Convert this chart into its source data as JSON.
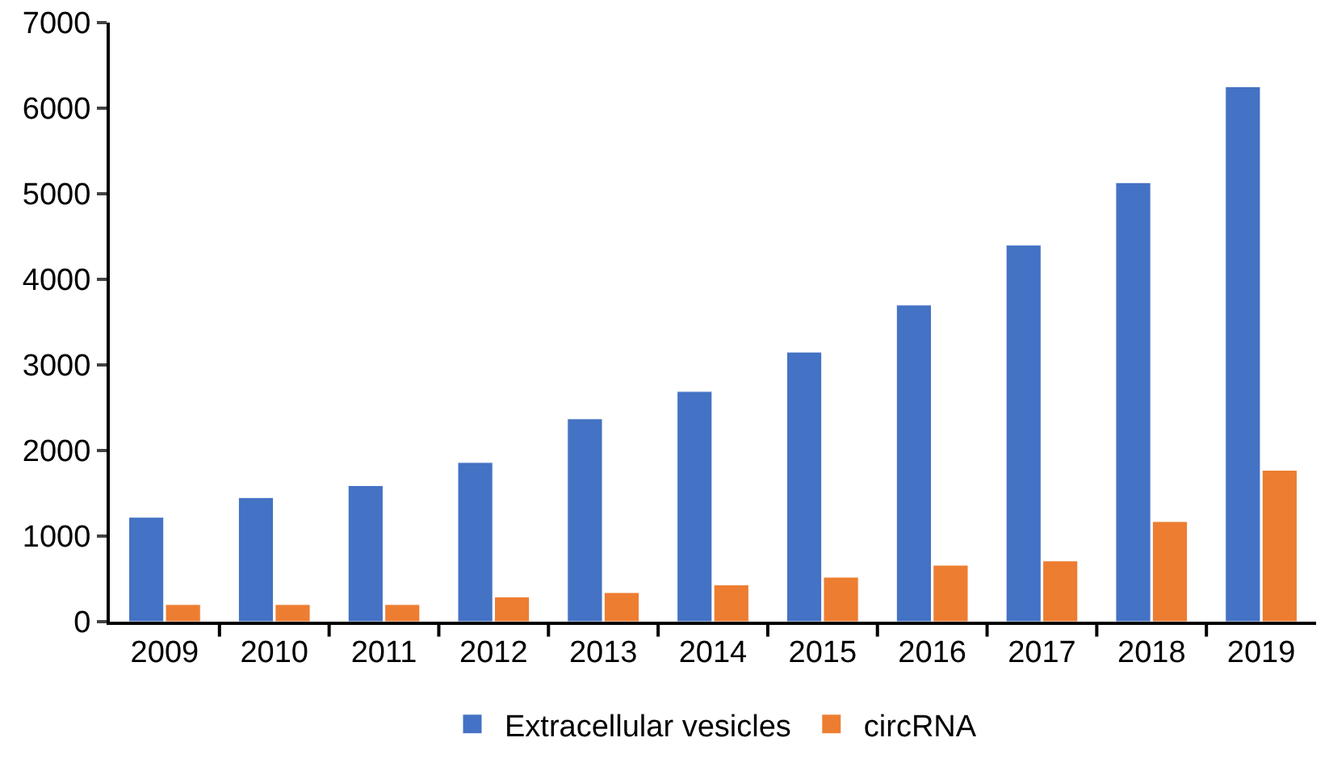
{
  "chart_data": {
    "type": "bar",
    "categories": [
      "2009",
      "2010",
      "2011",
      "2012",
      "2013",
      "2014",
      "2015",
      "2016",
      "2017",
      "2018",
      "2019"
    ],
    "series": [
      {
        "name": "Extracellular vesicles",
        "color": "#4472c4",
        "values": [
          1220,
          1450,
          1590,
          1860,
          2370,
          2690,
          3150,
          3700,
          4400,
          5130,
          6250
        ]
      },
      {
        "name": "circRNA",
        "color": "#ed7d31",
        "values": [
          200,
          200,
          200,
          290,
          340,
          430,
          520,
          660,
          710,
          1170,
          1770
        ]
      }
    ],
    "ylim": [
      0,
      7000
    ],
    "yticks": [
      0,
      1000,
      2000,
      3000,
      4000,
      5000,
      6000,
      7000
    ],
    "grid": false,
    "legend": "bottom"
  }
}
